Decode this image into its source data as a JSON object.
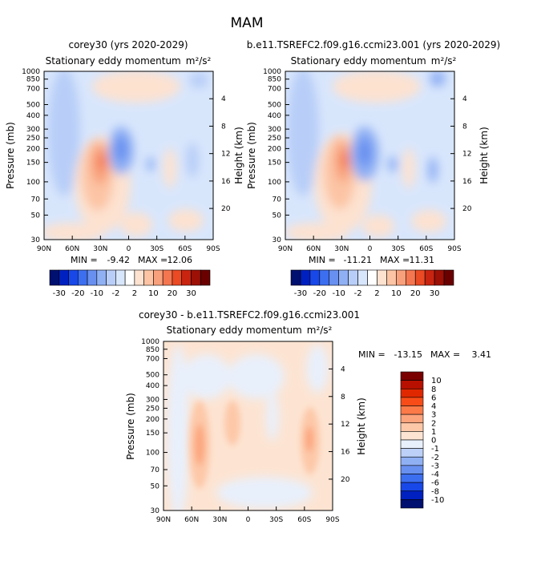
{
  "page_title": "MAM",
  "chart_data": [
    {
      "type": "heatmap",
      "title": "corey30 (yrs 2020-2029)",
      "subtitle": "Stationary eddy momentum",
      "units": "m²/s²",
      "ylabel": "Pressure (mb)",
      "y2label": "Height (km)",
      "x_ticks": [
        "90N",
        "60N",
        "30N",
        "0",
        "30S",
        "60S",
        "90S"
      ],
      "y_ticks": [
        "30",
        "50",
        "70",
        "100",
        "150",
        "200",
        "250",
        "300",
        "400",
        "500",
        "700",
        "850",
        "1000"
      ],
      "y2_ticks": [
        "20",
        "16",
        "12",
        "8",
        "4"
      ],
      "min_label": "MIN =",
      "min_value": "-9.42",
      "max_label": "MAX =",
      "max_value": "12.06",
      "colorbar_labels": [
        "-30",
        "-20",
        "-10",
        "-2",
        "2",
        "10",
        "20",
        "30"
      ]
    },
    {
      "type": "heatmap",
      "title": "b.e11.TSREFC2.f09.g16.ccmi23.001 (yrs 2020-2029)",
      "subtitle": "Stationary eddy momentum",
      "units": "m²/s²",
      "ylabel": "Pressure (mb)",
      "y2label": "Height (km)",
      "x_ticks": [
        "90N",
        "60N",
        "30N",
        "0",
        "30S",
        "60S",
        "90S"
      ],
      "y_ticks": [
        "30",
        "50",
        "70",
        "100",
        "150",
        "200",
        "250",
        "300",
        "400",
        "500",
        "700",
        "850",
        "1000"
      ],
      "y2_ticks": [
        "20",
        "16",
        "12",
        "8",
        "4"
      ],
      "min_label": "MIN =",
      "min_value": "-11.21",
      "max_label": "MAX =",
      "max_value": "11.31",
      "colorbar_labels": [
        "-30",
        "-20",
        "-10",
        "-2",
        "2",
        "10",
        "20",
        "30"
      ]
    },
    {
      "type": "heatmap",
      "title": "corey30 - b.e11.TSREFC2.f09.g16.ccmi23.001",
      "subtitle": "Stationary eddy momentum",
      "units": "m²/s²",
      "ylabel": "Pressure (mb)",
      "y2label": "Height (km)",
      "x_ticks": [
        "90N",
        "60N",
        "30N",
        "0",
        "30S",
        "60S",
        "90S"
      ],
      "y_ticks": [
        "30",
        "50",
        "70",
        "100",
        "150",
        "200",
        "250",
        "300",
        "400",
        "500",
        "700",
        "850",
        "1000"
      ],
      "y2_ticks": [
        "20",
        "16",
        "12",
        "8",
        "4"
      ],
      "min_label": "MIN =",
      "min_value": "-13.15",
      "max_label": "MAX =",
      "max_value": "3.41",
      "colorbar_labels": [
        "10",
        "8",
        "6",
        "4",
        "3",
        "2",
        "1",
        "0",
        "-1",
        "-2",
        "-3",
        "-4",
        "-6",
        "-8",
        "-10"
      ]
    }
  ],
  "colors": {
    "scale_full": [
      "#001070",
      "#0020c0",
      "#1848e8",
      "#3c6ef0",
      "#6890f0",
      "#90b0f4",
      "#b8cef8",
      "#d8e6fc",
      "#ffffff",
      "#fde2d0",
      "#fcc4a4",
      "#f8a07c",
      "#f47650",
      "#ea4a24",
      "#c82410",
      "#9c1006",
      "#6a0000"
    ],
    "scale_diff": [
      "#7a0000",
      "#b81000",
      "#e02800",
      "#f84c18",
      "#fc7a48",
      "#fca47c",
      "#fdc8a8",
      "#fde4d2",
      "#e8f0fc",
      "#bcd0f8",
      "#90b0f4",
      "#6890f0",
      "#3c6ef0",
      "#1848e8",
      "#0020c0",
      "#001070"
    ]
  }
}
